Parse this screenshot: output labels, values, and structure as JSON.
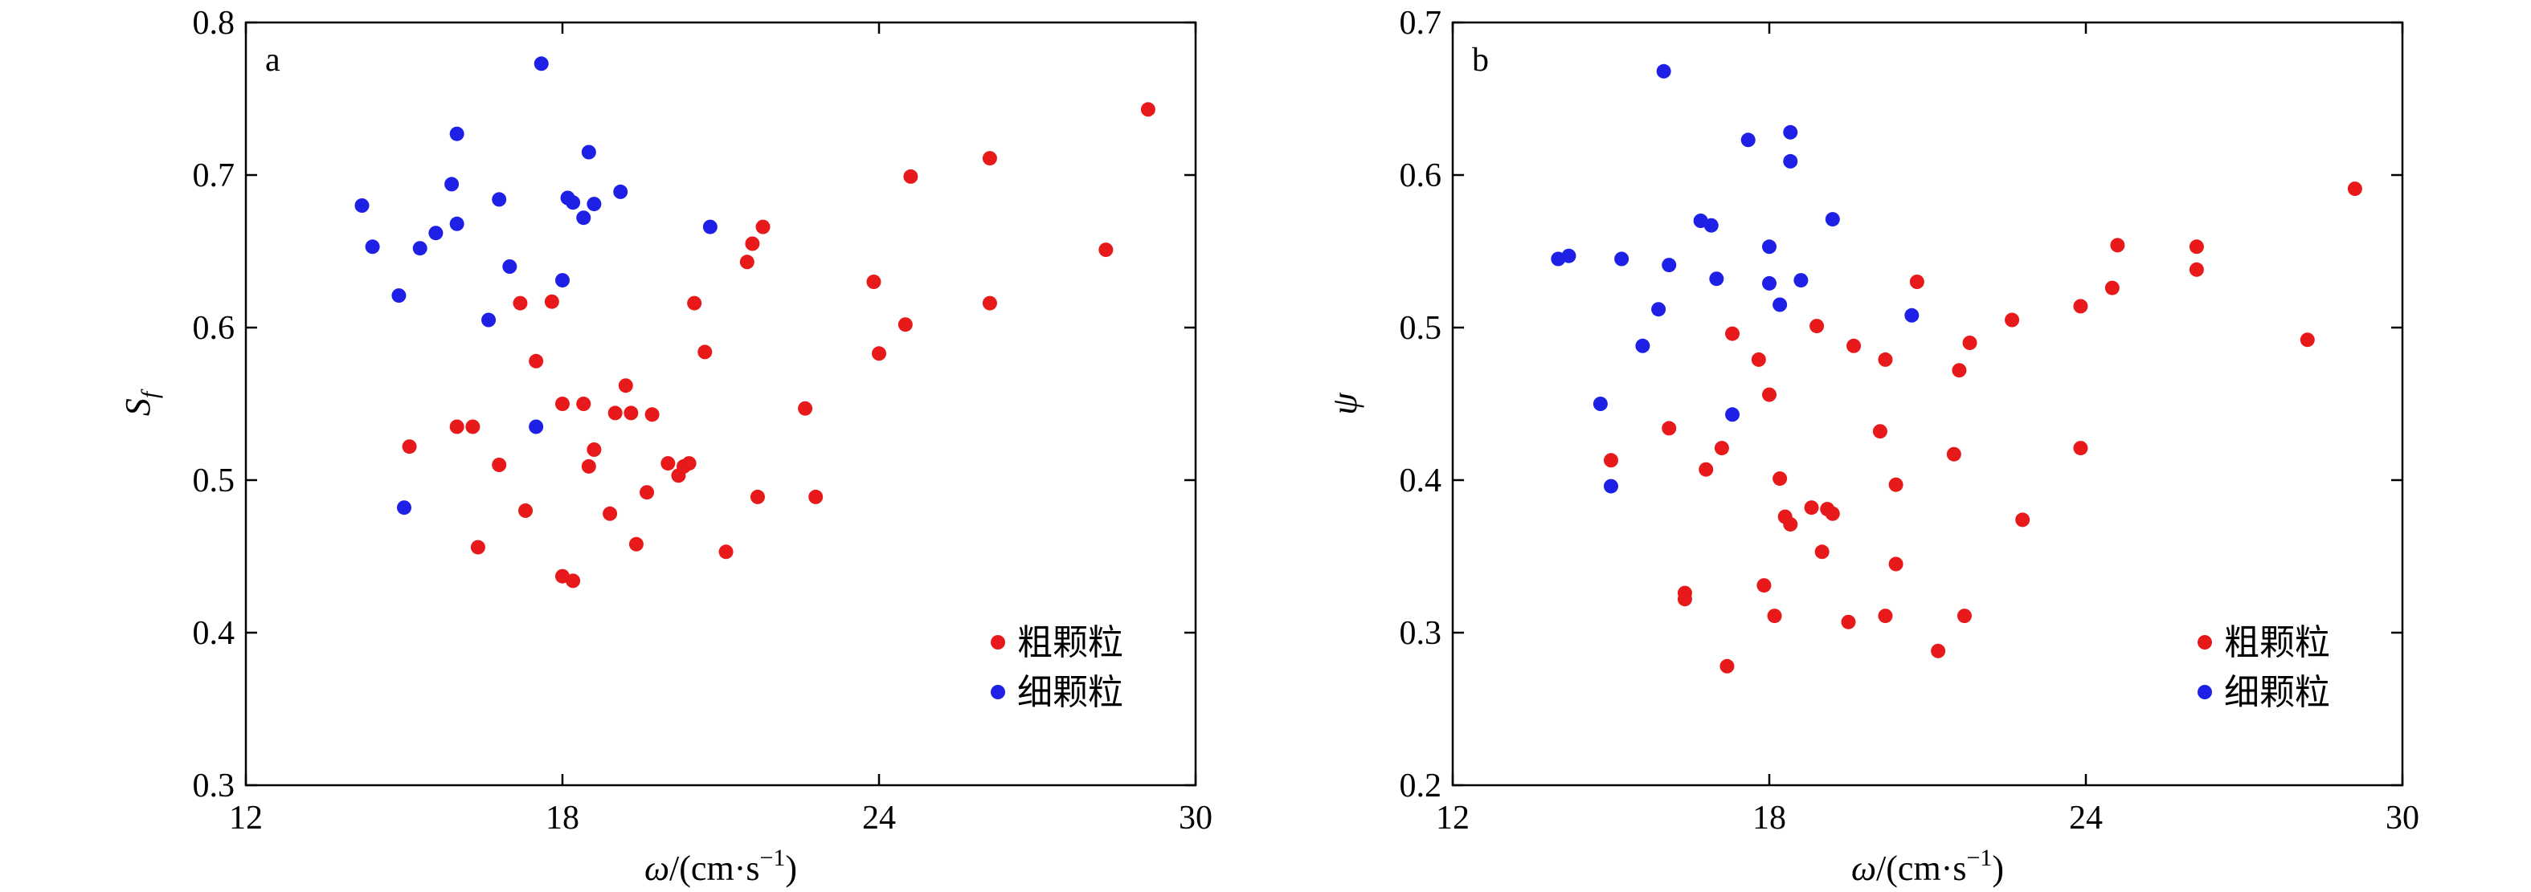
{
  "chart_data": [
    {
      "type": "scatter",
      "panel_label": "a",
      "xlabel": {
        "symbol": "ω",
        "unit_prefix": "/(cm·s",
        "unit_exp": "−1",
        "unit_suffix": ")"
      },
      "ylabel": {
        "symbol": "S",
        "subscript": "f"
      },
      "xlim": [
        12,
        30
      ],
      "ylim": [
        0.3,
        0.8
      ],
      "x_ticks": [
        "12",
        "18",
        "24",
        "30"
      ],
      "y_ticks": [
        "0.3",
        "0.4",
        "0.5",
        "0.6",
        "0.7",
        "0.8"
      ],
      "legend_position": "bottom-right",
      "series": [
        {
          "name": "粗颗粒",
          "color": "#e8191a",
          "points": [
            [
              15.1,
              0.522
            ],
            [
              16.0,
              0.535
            ],
            [
              16.3,
              0.535
            ],
            [
              16.8,
              0.51
            ],
            [
              16.4,
              0.456
            ],
            [
              17.3,
              0.48
            ],
            [
              17.2,
              0.616
            ],
            [
              17.5,
              0.578
            ],
            [
              17.8,
              0.617
            ],
            [
              18.0,
              0.55
            ],
            [
              18.4,
              0.55
            ],
            [
              18.0,
              0.437
            ],
            [
              18.2,
              0.434
            ],
            [
              18.5,
              0.509
            ],
            [
              18.6,
              0.52
            ],
            [
              18.9,
              0.478
            ],
            [
              19.0,
              0.544
            ],
            [
              19.2,
              0.562
            ],
            [
              19.3,
              0.544
            ],
            [
              19.4,
              0.458
            ],
            [
              19.6,
              0.492
            ],
            [
              19.7,
              0.543
            ],
            [
              20.0,
              0.511
            ],
            [
              20.2,
              0.503
            ],
            [
              20.3,
              0.509
            ],
            [
              20.4,
              0.511
            ],
            [
              20.5,
              0.616
            ],
            [
              20.7,
              0.584
            ],
            [
              21.1,
              0.453
            ],
            [
              21.5,
              0.643
            ],
            [
              21.6,
              0.655
            ],
            [
              21.7,
              0.489
            ],
            [
              21.8,
              0.666
            ],
            [
              22.6,
              0.547
            ],
            [
              22.8,
              0.489
            ],
            [
              23.9,
              0.63
            ],
            [
              24.0,
              0.583
            ],
            [
              24.5,
              0.602
            ],
            [
              24.6,
              0.699
            ],
            [
              26.1,
              0.711
            ],
            [
              26.1,
              0.616
            ],
            [
              28.3,
              0.651
            ],
            [
              29.1,
              0.743
            ]
          ]
        },
        {
          "name": "细颗粒",
          "color": "#1f20e6",
          "points": [
            [
              14.2,
              0.68
            ],
            [
              14.4,
              0.653
            ],
            [
              14.9,
              0.621
            ],
            [
              15.3,
              0.652
            ],
            [
              15.6,
              0.662
            ],
            [
              15.9,
              0.694
            ],
            [
              16.0,
              0.668
            ],
            [
              16.0,
              0.727
            ],
            [
              15.0,
              0.482
            ],
            [
              16.6,
              0.605
            ],
            [
              16.8,
              0.684
            ],
            [
              17.0,
              0.64
            ],
            [
              17.5,
              0.535
            ],
            [
              17.6,
              0.773
            ],
            [
              18.0,
              0.631
            ],
            [
              18.1,
              0.685
            ],
            [
              18.2,
              0.682
            ],
            [
              18.4,
              0.672
            ],
            [
              18.5,
              0.715
            ],
            [
              18.6,
              0.681
            ],
            [
              19.1,
              0.689
            ],
            [
              20.8,
              0.666
            ]
          ]
        }
      ]
    },
    {
      "type": "scatter",
      "panel_label": "b",
      "xlabel": {
        "symbol": "ω",
        "unit_prefix": "/(cm·s",
        "unit_exp": "−1",
        "unit_suffix": ")"
      },
      "ylabel": {
        "symbol": "ψ"
      },
      "xlim": [
        12,
        30
      ],
      "ylim": [
        0.2,
        0.7
      ],
      "x_ticks": [
        "12",
        "18",
        "24",
        "30"
      ],
      "y_ticks": [
        "0.2",
        "0.3",
        "0.4",
        "0.5",
        "0.6",
        "0.7"
      ],
      "legend_position": "bottom-right",
      "series": [
        {
          "name": "粗颗粒",
          "color": "#e8191a",
          "points": [
            [
              15.0,
              0.413
            ],
            [
              16.1,
              0.434
            ],
            [
              16.4,
              0.326
            ],
            [
              16.4,
              0.322
            ],
            [
              16.8,
              0.407
            ],
            [
              17.1,
              0.421
            ],
            [
              17.2,
              0.278
            ],
            [
              17.3,
              0.496
            ],
            [
              17.8,
              0.479
            ],
            [
              17.9,
              0.331
            ],
            [
              18.0,
              0.456
            ],
            [
              18.1,
              0.311
            ],
            [
              18.2,
              0.401
            ],
            [
              18.3,
              0.376
            ],
            [
              18.4,
              0.371
            ],
            [
              18.8,
              0.382
            ],
            [
              18.9,
              0.501
            ],
            [
              19.0,
              0.353
            ],
            [
              19.1,
              0.381
            ],
            [
              19.2,
              0.378
            ],
            [
              19.5,
              0.307
            ],
            [
              19.6,
              0.488
            ],
            [
              20.1,
              0.432
            ],
            [
              20.2,
              0.479
            ],
            [
              20.2,
              0.311
            ],
            [
              20.4,
              0.345
            ],
            [
              20.4,
              0.397
            ],
            [
              20.8,
              0.53
            ],
            [
              21.2,
              0.288
            ],
            [
              21.5,
              0.417
            ],
            [
              21.6,
              0.472
            ],
            [
              21.7,
              0.311
            ],
            [
              21.8,
              0.49
            ],
            [
              22.6,
              0.505
            ],
            [
              22.8,
              0.374
            ],
            [
              23.9,
              0.514
            ],
            [
              23.9,
              0.421
            ],
            [
              24.5,
              0.526
            ],
            [
              24.6,
              0.554
            ],
            [
              26.1,
              0.553
            ],
            [
              26.1,
              0.538
            ],
            [
              28.2,
              0.492
            ],
            [
              29.1,
              0.591
            ]
          ]
        },
        {
          "name": "细颗粒",
          "color": "#1f20e6",
          "points": [
            [
              14.0,
              0.545
            ],
            [
              14.2,
              0.547
            ],
            [
              14.8,
              0.45
            ],
            [
              15.0,
              0.396
            ],
            [
              15.2,
              0.545
            ],
            [
              15.6,
              0.488
            ],
            [
              15.9,
              0.512
            ],
            [
              16.0,
              0.668
            ],
            [
              16.1,
              0.541
            ],
            [
              16.7,
              0.57
            ],
            [
              16.9,
              0.567
            ],
            [
              17.0,
              0.532
            ],
            [
              17.3,
              0.443
            ],
            [
              17.6,
              0.623
            ],
            [
              18.0,
              0.529
            ],
            [
              18.0,
              0.553
            ],
            [
              18.2,
              0.515
            ],
            [
              18.4,
              0.628
            ],
            [
              18.4,
              0.609
            ],
            [
              18.6,
              0.531
            ],
            [
              19.2,
              0.571
            ],
            [
              20.7,
              0.508
            ]
          ]
        }
      ]
    }
  ]
}
